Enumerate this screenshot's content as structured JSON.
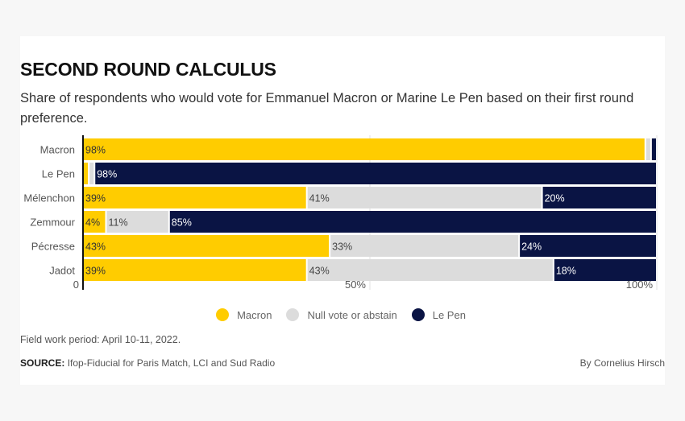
{
  "title": "SECOND ROUND CALCULUS",
  "subtitle": "Share of respondents who would vote for Emmanuel Macron or Marine Le Pen based on their first round preference.",
  "colors": {
    "macron": "#ffcc00",
    "null": "#dcdcdc",
    "lepen": "#0a1444"
  },
  "chart_data": {
    "type": "bar",
    "orientation": "horizontal",
    "stacked": true,
    "categories": [
      "Macron",
      "Le Pen",
      "Mélenchon",
      "Zemmour",
      "Pécresse",
      "Jadot"
    ],
    "series": [
      {
        "name": "Macron",
        "values": [
          98,
          1,
          39,
          4,
          43,
          39
        ],
        "labels": [
          "98%",
          "",
          "39%",
          "4%",
          "43%",
          "39%"
        ]
      },
      {
        "name": "Null vote or abstain",
        "values": [
          1,
          1,
          41,
          11,
          33,
          43
        ],
        "labels": [
          "",
          "",
          "41%",
          "11%",
          "33%",
          "43%"
        ]
      },
      {
        "name": "Le Pen",
        "values": [
          1,
          98,
          20,
          85,
          24,
          18
        ],
        "labels": [
          "",
          "98%",
          "20%",
          "85%",
          "24%",
          "18%"
        ]
      }
    ],
    "xlim": [
      0,
      100
    ],
    "xticks": [
      {
        "value": 0,
        "label": "0"
      },
      {
        "value": 50,
        "label": "50%"
      },
      {
        "value": 100,
        "label": "100%"
      }
    ],
    "grid": true,
    "legend_position": "bottom"
  },
  "legend": [
    {
      "label": "Macron",
      "color": "#ffcc00"
    },
    {
      "label": "Null vote or abstain",
      "color": "#dcdcdc"
    },
    {
      "label": "Le Pen",
      "color": "#0a1444"
    }
  ],
  "footer": {
    "note": "Field work period: April 10-11, 2022.",
    "source_label": "SOURCE:",
    "source_text": "Ifop-Fiducial for Paris Match, LCI and Sud Radio",
    "byline": "By Cornelius Hirsch"
  }
}
